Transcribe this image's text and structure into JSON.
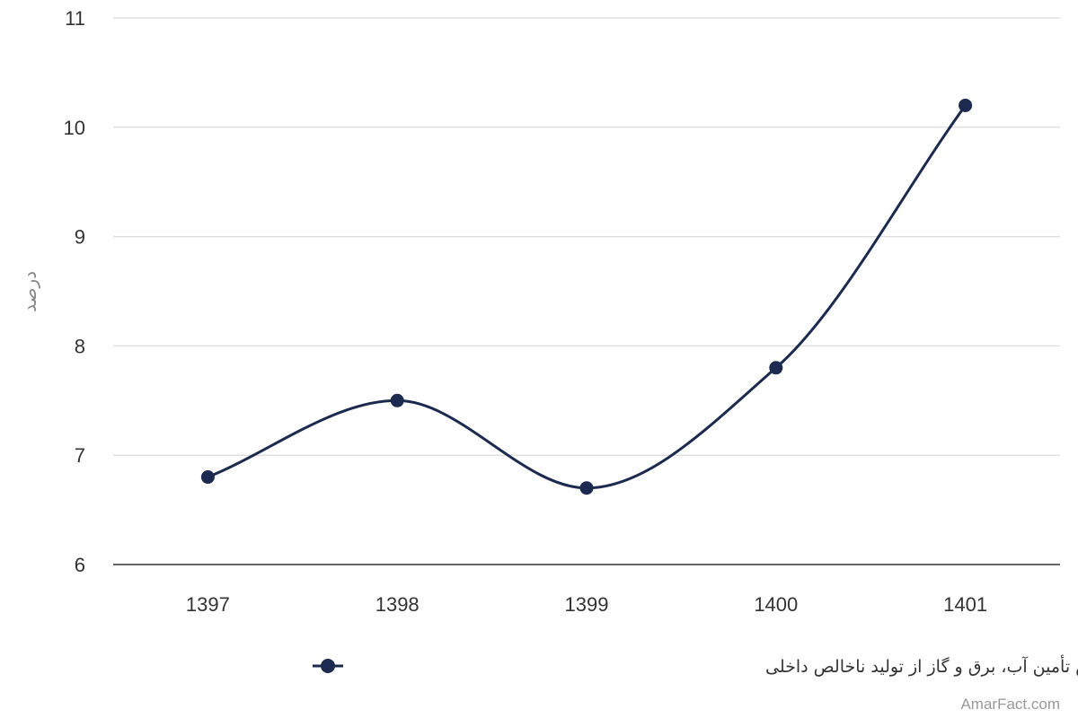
{
  "chart_data": {
    "type": "line",
    "categories": [
      "1397",
      "1398",
      "1399",
      "1400",
      "1401"
    ],
    "series": [
      {
        "name": "سهم بخش تأمین آب، برق و گاز از تولید ناخالص داخلی",
        "values": [
          6.8,
          7.5,
          6.7,
          7.8,
          10.2
        ],
        "color": "#1b2a4e"
      }
    ],
    "ylabel": "درصد",
    "xlabel": "",
    "ylim": [
      6,
      11
    ],
    "yticks": [
      6,
      7,
      8,
      9,
      10,
      11
    ],
    "grid": true,
    "smooth": true,
    "legend": "bottom-center"
  },
  "credit": "AmarFact.com"
}
